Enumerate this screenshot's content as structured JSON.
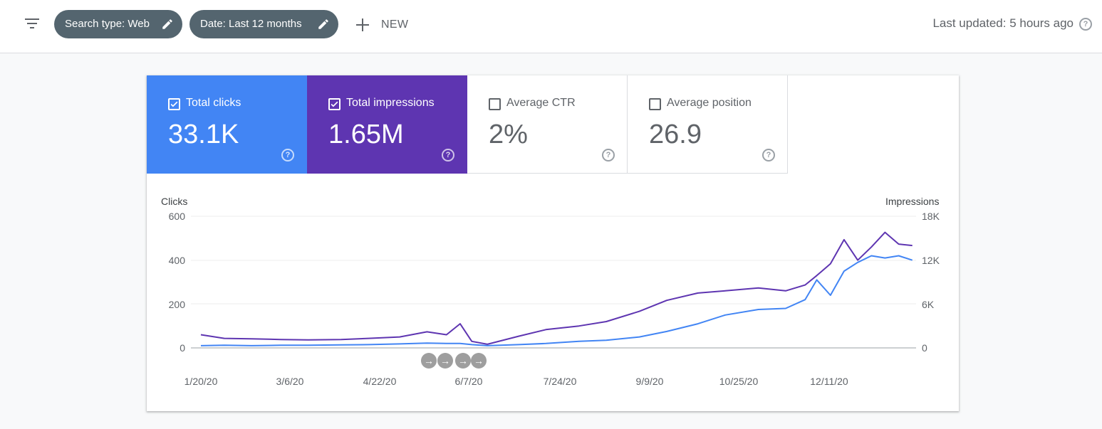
{
  "toolbar": {
    "filter_icon": "filter-list-icon",
    "chips": [
      {
        "label": "Search type: Web",
        "icon": "pencil-icon"
      },
      {
        "label": "Date: Last 12 months",
        "icon": "pencil-icon"
      }
    ],
    "new_label": "NEW",
    "last_updated": "Last updated: 5 hours ago"
  },
  "metrics": [
    {
      "label": "Total clicks",
      "value": "33.1K",
      "checked": true,
      "color": "#4285f4"
    },
    {
      "label": "Total impressions",
      "value": "1.65M",
      "checked": true,
      "color": "#5e35b1"
    },
    {
      "label": "Average CTR",
      "value": "2%",
      "checked": false
    },
    {
      "label": "Average position",
      "value": "26.9",
      "checked": false
    }
  ],
  "annotations": [
    "→",
    "→",
    "→",
    "→"
  ],
  "chart_data": {
    "type": "line",
    "ylabel_left": "Clicks",
    "ylabel_right": "Impressions",
    "y_left_ticks": [
      "600",
      "400",
      "200",
      "0"
    ],
    "y_right_ticks": [
      "18K",
      "12K",
      "6K",
      "0"
    ],
    "ylim_left": [
      0,
      600
    ],
    "ylim_right": [
      0,
      18000
    ],
    "x_ticks": [
      "1/20/20",
      "3/6/20",
      "4/22/20",
      "6/7/20",
      "7/24/20",
      "9/9/20",
      "10/25/20",
      "12/11/20"
    ],
    "grid": true,
    "series": [
      {
        "name": "Clicks",
        "axis": "left",
        "color": "#4285f4",
        "x": [
          "1/20/20",
          "2/1/20",
          "2/15/20",
          "3/1/20",
          "3/15/20",
          "4/1/20",
          "4/15/20",
          "5/1/20",
          "5/15/20",
          "5/25/20",
          "6/1/20",
          "6/7/20",
          "6/15/20",
          "7/1/20",
          "7/15/20",
          "8/1/20",
          "8/15/20",
          "9/1/20",
          "9/15/20",
          "10/1/20",
          "10/15/20",
          "11/1/20",
          "11/15/20",
          "11/25/20",
          "12/1/20",
          "12/8/20",
          "12/15/20",
          "12/22/20",
          "12/29/20",
          "1/5/21",
          "1/12/21",
          "1/19/21"
        ],
        "values": [
          10,
          12,
          10,
          12,
          12,
          14,
          15,
          18,
          22,
          20,
          20,
          15,
          10,
          15,
          20,
          30,
          35,
          50,
          75,
          110,
          150,
          175,
          180,
          220,
          310,
          240,
          350,
          390,
          420,
          410,
          420,
          400
        ]
      },
      {
        "name": "Impressions",
        "axis": "right",
        "color": "#5e35b1",
        "x": [
          "1/20/20",
          "2/1/20",
          "2/15/20",
          "3/1/20",
          "3/15/20",
          "4/1/20",
          "4/15/20",
          "5/1/20",
          "5/15/20",
          "5/25/20",
          "6/1/20",
          "6/7/20",
          "6/15/20",
          "7/1/20",
          "7/15/20",
          "8/1/20",
          "8/15/20",
          "9/1/20",
          "9/15/20",
          "10/1/20",
          "10/15/20",
          "11/1/20",
          "11/15/20",
          "11/25/20",
          "12/1/20",
          "12/8/20",
          "12/15/20",
          "12/22/20",
          "12/29/20",
          "1/5/21",
          "1/12/21",
          "1/19/21"
        ],
        "values": [
          1800,
          1300,
          1250,
          1150,
          1100,
          1150,
          1300,
          1500,
          2200,
          1800,
          3300,
          900,
          500,
          1600,
          2500,
          3000,
          3600,
          5000,
          6500,
          7500,
          7800,
          8200,
          7800,
          8600,
          9900,
          11500,
          14800,
          12000,
          13800,
          15800,
          14200,
          14000
        ]
      }
    ]
  }
}
